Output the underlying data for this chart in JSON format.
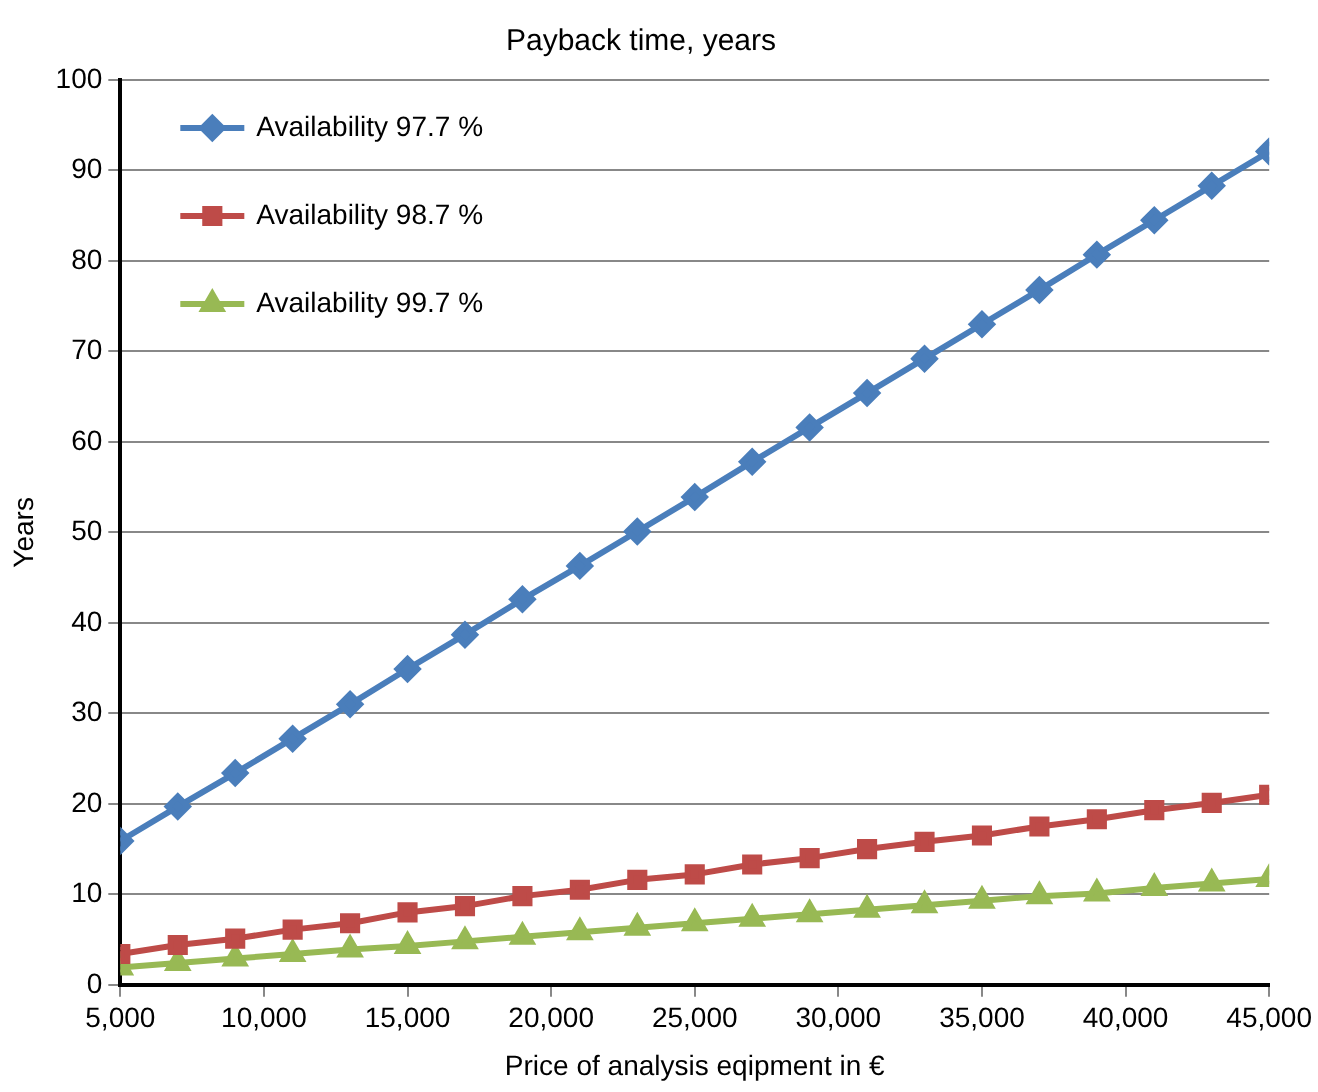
{
  "chart_data": {
    "type": "line",
    "title": "Payback time, years",
    "xlabel": "Price of analysis eqipment in €",
    "ylabel": "Years",
    "x": [
      5000,
      7000,
      9000,
      11000,
      13000,
      15000,
      17000,
      19000,
      21000,
      23000,
      25000,
      27000,
      29000,
      31000,
      33000,
      35000,
      37000,
      39000,
      41000,
      43000,
      45000
    ],
    "xlim": [
      5000,
      45000
    ],
    "xticks": [
      {
        "value": 5000,
        "label": "5,000"
      },
      {
        "value": 10000,
        "label": "10,000"
      },
      {
        "value": 15000,
        "label": "15,000"
      },
      {
        "value": 20000,
        "label": "20,000"
      },
      {
        "value": 25000,
        "label": "25,000"
      },
      {
        "value": 30000,
        "label": "30,000"
      },
      {
        "value": 35000,
        "label": "35,000"
      },
      {
        "value": 40000,
        "label": "40,000"
      },
      {
        "value": 45000,
        "label": "45,000"
      }
    ],
    "ylim": [
      0,
      100
    ],
    "yticks": [
      0,
      10,
      20,
      30,
      40,
      50,
      60,
      70,
      80,
      90,
      100
    ],
    "grid": "y",
    "legend": "top left",
    "series": [
      {
        "name": "Availability 97.7 %",
        "color": "#4a7ebb",
        "marker": "diamond",
        "values": [
          15.9,
          19.7,
          23.4,
          27.2,
          31.0,
          34.9,
          38.7,
          42.6,
          46.3,
          50.1,
          53.9,
          57.8,
          61.6,
          65.4,
          69.2,
          73.0,
          76.8,
          80.7,
          84.5,
          88.3,
          92.1
        ]
      },
      {
        "name": "Availability 98.7 %",
        "color": "#be4b48",
        "marker": "square",
        "values": [
          3.4,
          4.4,
          5.1,
          6.1,
          6.8,
          8.0,
          8.7,
          9.8,
          10.5,
          11.6,
          12.2,
          13.3,
          14.0,
          15.0,
          15.8,
          16.5,
          17.5,
          18.3,
          19.3,
          20.1,
          21.0
        ]
      },
      {
        "name": "Availability 99.7 %",
        "color": "#98b954",
        "marker": "triangle",
        "values": [
          1.9,
          2.4,
          2.9,
          3.4,
          3.9,
          4.3,
          4.8,
          5.3,
          5.8,
          6.3,
          6.8,
          7.3,
          7.8,
          8.3,
          8.8,
          9.3,
          9.8,
          10.1,
          10.7,
          11.2,
          11.7
        ]
      }
    ]
  }
}
